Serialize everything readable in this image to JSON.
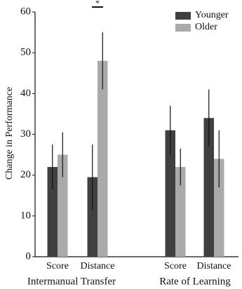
{
  "chart_data": {
    "type": "bar",
    "y_label": "Change in Performance",
    "categories": [
      "Score",
      "Distance",
      "Score",
      "Distance"
    ],
    "group_labels": [
      "Intermanual Transfer",
      "Rate of Learning"
    ],
    "series": [
      {
        "name": "Younger",
        "color": "#404040",
        "values": [
          22,
          19.5,
          31,
          34
        ],
        "errors": [
          5.5,
          8,
          6,
          7
        ]
      },
      {
        "name": "Older",
        "color": "#aaaaaa",
        "values": [
          25,
          48,
          22,
          24
        ],
        "errors": [
          5.5,
          7,
          4.5,
          7
        ]
      }
    ],
    "annotations": [
      {
        "text": "*"
      }
    ],
    "ylim": [
      0,
      60
    ],
    "yticks": [
      0,
      10,
      20,
      30,
      40,
      50,
      60
    ],
    "legend": "upper right"
  }
}
